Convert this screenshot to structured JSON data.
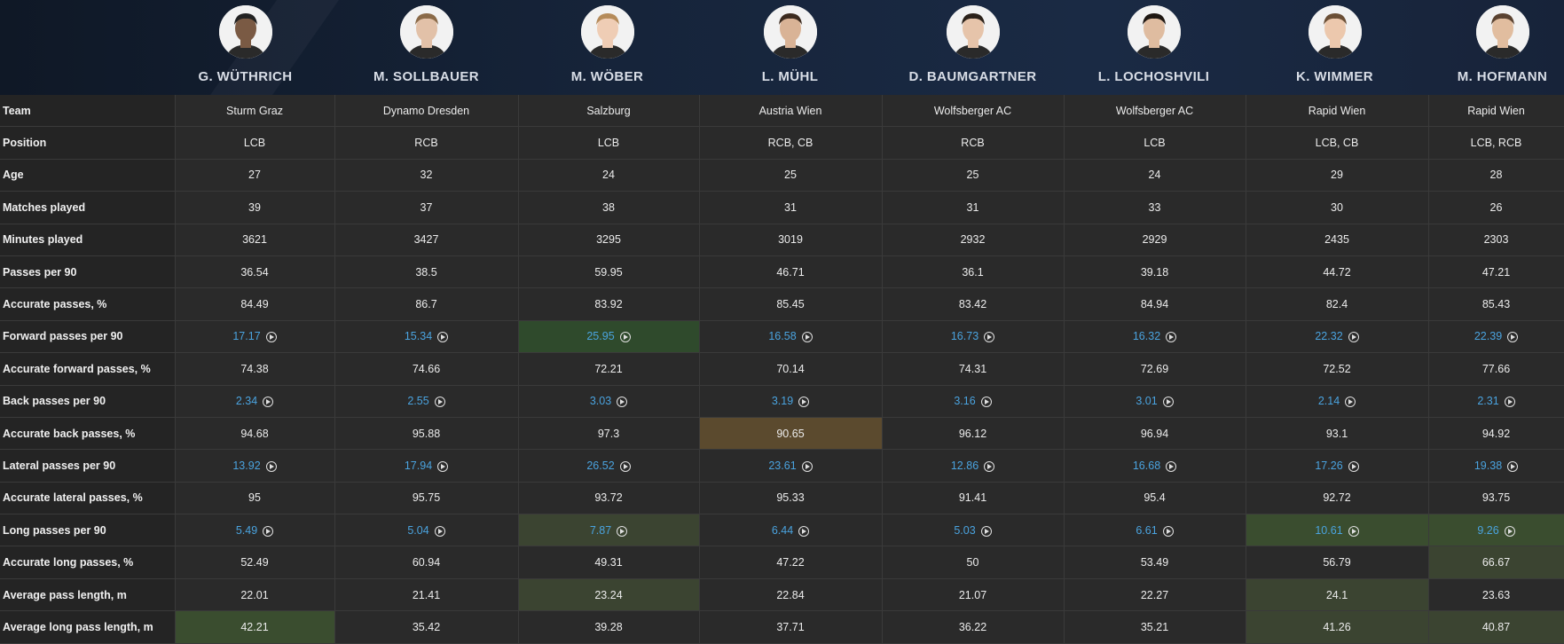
{
  "players": [
    {
      "name": "G. WÜTHRICH",
      "skin": "#7a5a44",
      "hair": "#222"
    },
    {
      "name": "M. SOLLBAUER",
      "skin": "#e2c1a8",
      "hair": "#8a6a48"
    },
    {
      "name": "M. WÖBER",
      "skin": "#efcdb5",
      "hair": "#b58b5a"
    },
    {
      "name": "L. MÜHL",
      "skin": "#d9b396",
      "hair": "#3b2a1e"
    },
    {
      "name": "D. BAUMGARTNER",
      "skin": "#e6c4aa",
      "hair": "#2b2119"
    },
    {
      "name": "L. LOCHOSHVILI",
      "skin": "#dfbca0",
      "hair": "#1e1712"
    },
    {
      "name": "K. WIMMER",
      "skin": "#ecc8ad",
      "hair": "#6b4f36"
    },
    {
      "name": "M. HOFMANN",
      "skin": "#e1bd9f",
      "hair": "#5a4230"
    }
  ],
  "rows": [
    {
      "label": "Team",
      "values": [
        "Sturm Graz",
        "Dynamo Dresden",
        "Salzburg",
        "Austria Wien",
        "Wolfsberger AC",
        "Wolfsberger AC",
        "Rapid Wien",
        "Rapid Wien"
      ]
    },
    {
      "label": "Position",
      "values": [
        "LCB",
        "RCB",
        "LCB",
        "RCB, CB",
        "RCB",
        "LCB",
        "LCB, CB",
        "LCB, RCB"
      ]
    },
    {
      "label": "Age",
      "values": [
        "27",
        "32",
        "24",
        "25",
        "25",
        "24",
        "29",
        "28"
      ]
    },
    {
      "label": "Matches played",
      "values": [
        "39",
        "37",
        "38",
        "31",
        "31",
        "33",
        "30",
        "26"
      ]
    },
    {
      "label": "Minutes played",
      "values": [
        "3621",
        "3427",
        "3295",
        "3019",
        "2932",
        "2929",
        "2435",
        "2303"
      ]
    },
    {
      "label": "Passes per 90",
      "values": [
        "36.54",
        "38.5",
        "59.95",
        "46.71",
        "36.1",
        "39.18",
        "44.72",
        "47.21"
      ]
    },
    {
      "label": "Accurate passes, %",
      "values": [
        "84.49",
        "86.7",
        "83.92",
        "85.45",
        "83.42",
        "84.94",
        "82.4",
        "85.43"
      ]
    },
    {
      "label": "Forward passes per 90",
      "link": true,
      "values": [
        "17.17",
        "15.34",
        "25.95",
        "16.58",
        "16.73",
        "16.32",
        "22.32",
        "22.39"
      ]
    },
    {
      "label": "Accurate forward passes, %",
      "values": [
        "74.38",
        "74.66",
        "72.21",
        "70.14",
        "74.31",
        "72.69",
        "72.52",
        "77.66"
      ]
    },
    {
      "label": "Back passes per 90",
      "link": true,
      "values": [
        "2.34",
        "2.55",
        "3.03",
        "3.19",
        "3.16",
        "3.01",
        "2.14",
        "2.31"
      ]
    },
    {
      "label": "Accurate back passes, %",
      "values": [
        "94.68",
        "95.88",
        "97.3",
        "90.65",
        "96.12",
        "96.94",
        "93.1",
        "94.92"
      ]
    },
    {
      "label": "Lateral passes per 90",
      "link": true,
      "values": [
        "13.92",
        "17.94",
        "26.52",
        "23.61",
        "12.86",
        "16.68",
        "17.26",
        "19.38"
      ]
    },
    {
      "label": "Accurate lateral passes, %",
      "values": [
        "95",
        "95.75",
        "93.72",
        "95.33",
        "91.41",
        "95.4",
        "92.72",
        "93.75"
      ]
    },
    {
      "label": "Long passes per 90",
      "link": true,
      "values": [
        "5.49",
        "5.04",
        "7.87",
        "6.44",
        "5.03",
        "6.61",
        "10.61",
        "9.26"
      ]
    },
    {
      "label": "Accurate long passes, %",
      "values": [
        "52.49",
        "60.94",
        "49.31",
        "47.22",
        "50",
        "53.49",
        "56.79",
        "66.67"
      ]
    },
    {
      "label": "Average pass length, m",
      "values": [
        "22.01",
        "21.41",
        "23.24",
        "22.84",
        "21.07",
        "22.27",
        "24.1",
        "23.63"
      ]
    },
    {
      "label": "Average long pass length, m",
      "values": [
        "42.21",
        "35.42",
        "39.28",
        "37.71",
        "36.22",
        "35.21",
        "41.26",
        "40.87"
      ]
    }
  ],
  "highlights": {
    "7-2": "hl-green",
    "10-3": "hl-brown",
    "13-2": "hl-olive",
    "13-6": "hl-green2",
    "13-7": "hl-green2",
    "14-7": "hl-olive",
    "15-2": "hl-olive",
    "15-6": "hl-olive",
    "16-0": "hl-green2",
    "16-6": "hl-olive",
    "16-7": "hl-olive"
  },
  "colors": {
    "link": "#4aa3df",
    "background": "#262626",
    "header": "#16243a"
  }
}
